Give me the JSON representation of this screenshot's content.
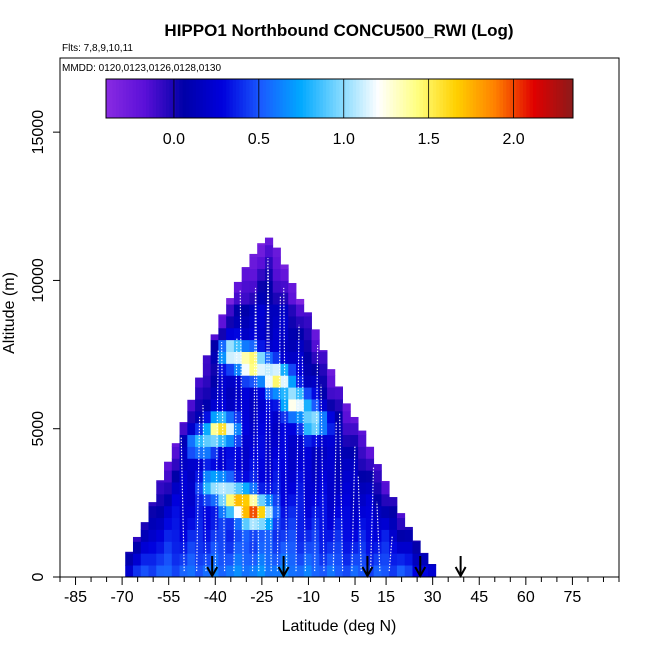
{
  "chart_data": {
    "type": "heatmap",
    "title": "HIPPO1 Northbound CONCU500_RWI (Log)",
    "flights_label": "Flts: 7,8,9,10,11",
    "dates_label": "MMDD: 0120,0123,0126,0128,0130",
    "xlabel": "Latitude (deg N)",
    "ylabel": "Altitude (m)",
    "xlim": [
      -90,
      90
    ],
    "ylim": [
      0,
      17500
    ],
    "x_ticks": [
      -85,
      -70,
      -55,
      -40,
      -25,
      -10,
      5,
      15,
      30,
      45,
      60,
      75
    ],
    "y_ticks": [
      0,
      5000,
      10000,
      15000
    ],
    "colorbar": {
      "range": [
        -0.4,
        2.35
      ],
      "ticks": [
        0.0,
        0.5,
        1.0,
        1.5,
        2.0
      ],
      "tick_labels": [
        "0.0",
        "0.5",
        "1.0",
        "1.5",
        "2.0"
      ],
      "colors": [
        "#8a2be2",
        "#5a10d8",
        "#0000a8",
        "#0000dd",
        "#1a5cff",
        "#00a8ff",
        "#7fd8ff",
        "#ffffff",
        "#ffff80",
        "#ffd000",
        "#ff8000",
        "#e00000",
        "#8b1a1a"
      ]
    },
    "envelope": {
      "latitude": [
        -68,
        -62,
        -58,
        -52,
        -47,
        -42,
        -38,
        -33,
        -30,
        -26,
        -22,
        -18,
        -14,
        -9,
        -4,
        2,
        8,
        14,
        20,
        26,
        30
      ],
      "max_altitude": [
        800,
        2000,
        3200,
        4700,
        6200,
        7700,
        8800,
        9900,
        10500,
        11200,
        11500,
        10600,
        9600,
        8700,
        7300,
        5900,
        4800,
        3400,
        2100,
        1000,
        400
      ]
    },
    "enhancements": [
      {
        "lat": -28,
        "alt": 7200,
        "value": 1.6
      },
      {
        "lat": -20,
        "alt": 6700,
        "value": 1.5
      },
      {
        "lat": -14,
        "alt": 5900,
        "value": 1.3
      },
      {
        "lat": -8,
        "alt": 5200,
        "value": 1.1
      },
      {
        "lat": -38,
        "alt": 5000,
        "value": 1.6
      },
      {
        "lat": -33,
        "alt": 2600,
        "value": 1.5
      },
      {
        "lat": -27,
        "alt": 2200,
        "value": 1.7
      },
      {
        "lat": -40,
        "alt": 3100,
        "value": 1.0
      },
      {
        "lat": -45,
        "alt": 4500,
        "value": 0.9
      },
      {
        "lat": -35,
        "alt": 7600,
        "value": 1.2
      }
    ],
    "profile_latitudes": [
      -50,
      -46,
      -43,
      -40,
      -37,
      -34,
      -31,
      -28,
      -26,
      -24,
      -22,
      -20,
      -17,
      -14,
      -11,
      -8,
      -5,
      -2,
      1,
      4,
      7,
      10,
      13,
      16
    ],
    "arrow_latitudes": [
      -41,
      -18,
      9,
      26,
      39
    ]
  }
}
